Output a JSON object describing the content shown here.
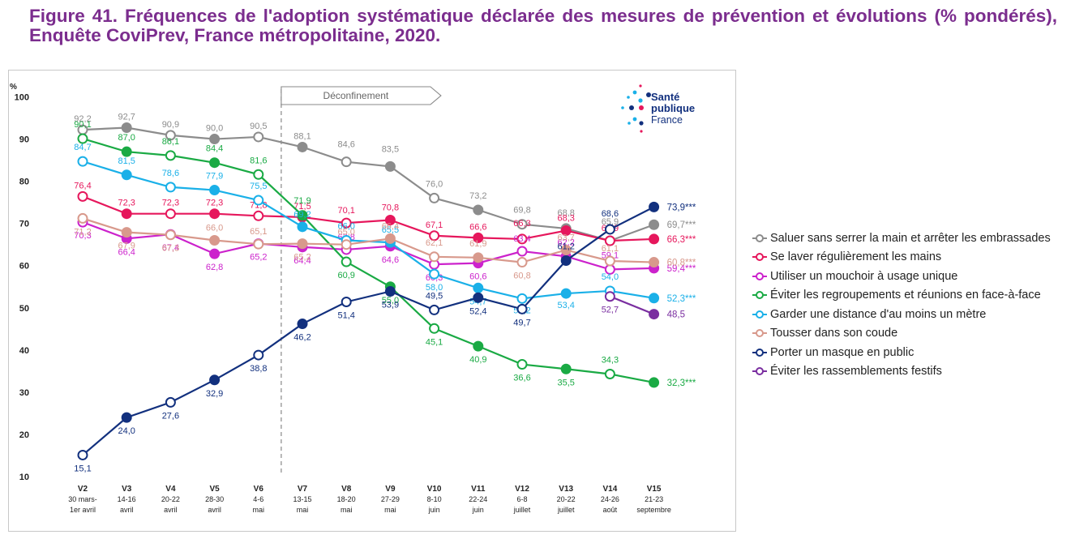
{
  "figure": {
    "title": "Figure 41. Fréquences de l'adoption systématique déclarée des mesures de prévention et évolutions (% pondérés), Enquête CoviPrev, France métropolitaine, 2020."
  },
  "logo": {
    "line1": "Santé",
    "line2": "publique",
    "line3": "France"
  },
  "chart_data": {
    "type": "line",
    "y_unit": "%",
    "ylim": [
      10,
      100
    ],
    "yticks": [
      10,
      20,
      30,
      40,
      50,
      60,
      70,
      80,
      90,
      100
    ],
    "grid": false,
    "legend_position": "right",
    "annotation": "Déconfinement",
    "categories": [
      {
        "wave": "V2",
        "dates": "30 mars-",
        "month": "1er avril"
      },
      {
        "wave": "V3",
        "dates": "14-16",
        "month": "avril"
      },
      {
        "wave": "V4",
        "dates": "20-22",
        "month": "avril"
      },
      {
        "wave": "V5",
        "dates": "28-30",
        "month": "avril"
      },
      {
        "wave": "V6",
        "dates": "4-6",
        "month": "mai"
      },
      {
        "wave": "V7",
        "dates": "13-15",
        "month": "mai"
      },
      {
        "wave": "V8",
        "dates": "18-20",
        "month": "mai"
      },
      {
        "wave": "V9",
        "dates": "27-29",
        "month": "mai"
      },
      {
        "wave": "V10",
        "dates": "8-10",
        "month": "juin"
      },
      {
        "wave": "V11",
        "dates": "22-24",
        "month": "juin"
      },
      {
        "wave": "V12",
        "dates": "6-8",
        "month": "juillet"
      },
      {
        "wave": "V13",
        "dates": "20-22",
        "month": "juillet"
      },
      {
        "wave": "V14",
        "dates": "24-26",
        "month": "août"
      },
      {
        "wave": "V15",
        "dates": "21-23",
        "month": "septembre"
      }
    ],
    "series": [
      {
        "name": "Saluer sans serrer la main et arrêter les embrassades",
        "color": "#8c8c8c",
        "values": [
          92.2,
          92.7,
          90.9,
          90.0,
          90.5,
          88.1,
          84.6,
          83.5,
          76.0,
          73.2,
          69.8,
          68.8,
          65.9,
          69.7
        ],
        "final_label": "69,7***"
      },
      {
        "name": "Se laver régulièrement les mains",
        "color": "#e6175c",
        "values": [
          76.4,
          72.3,
          72.3,
          72.3,
          71.8,
          71.5,
          70.1,
          70.8,
          67.1,
          66.6,
          66.3,
          68.3,
          65.9,
          66.3
        ],
        "final_label": "66,3***"
      },
      {
        "name": "Utiliser un mouchoir à usage unique",
        "color": "#cc22cc",
        "values": [
          70.3,
          66.4,
          67.4,
          62.8,
          65.2,
          64.4,
          63.8,
          64.6,
          60.3,
          60.6,
          63.4,
          62.2,
          59.1,
          59.4
        ],
        "final_label": "59,4***"
      },
      {
        "name": "Éviter les regroupements et réunions en face-à-face",
        "color": "#1aaa44",
        "values": [
          90.1,
          87.0,
          86.1,
          84.4,
          81.6,
          71.9,
          60.9,
          55.0,
          45.1,
          40.9,
          36.6,
          35.5,
          34.3,
          32.3
        ],
        "final_label": "32,3***"
      },
      {
        "name": "Garder une distance d'au moins un mètre",
        "color": "#1ab0e8",
        "values": [
          84.7,
          81.5,
          78.6,
          77.9,
          75.5,
          69.2,
          66.0,
          65.5,
          58.0,
          54.7,
          52.2,
          53.4,
          54.0,
          52.3
        ],
        "final_label": "52,3***"
      },
      {
        "name": "Tousser dans son coude",
        "color": "#d8998c",
        "values": [
          71.2,
          67.9,
          67.3,
          66.0,
          65.1,
          65.2,
          65.0,
          66.4,
          62.1,
          61.9,
          60.8,
          63.7,
          61.1,
          60.8
        ],
        "final_label": "60,8***"
      },
      {
        "name": "Porter un masque en public",
        "color": "#12307e",
        "values": [
          15.1,
          24.0,
          27.6,
          32.9,
          38.8,
          46.2,
          51.4,
          53.9,
          49.5,
          52.4,
          49.7,
          61.2,
          68.6,
          73.9
        ],
        "final_label": "73,9***"
      },
      {
        "name": "Éviter les rassemblements festifs",
        "color": "#7a2ea0",
        "values": [
          null,
          null,
          null,
          null,
          null,
          null,
          null,
          null,
          null,
          null,
          null,
          null,
          52.7,
          48.5
        ],
        "final_label": "48,5"
      }
    ]
  }
}
